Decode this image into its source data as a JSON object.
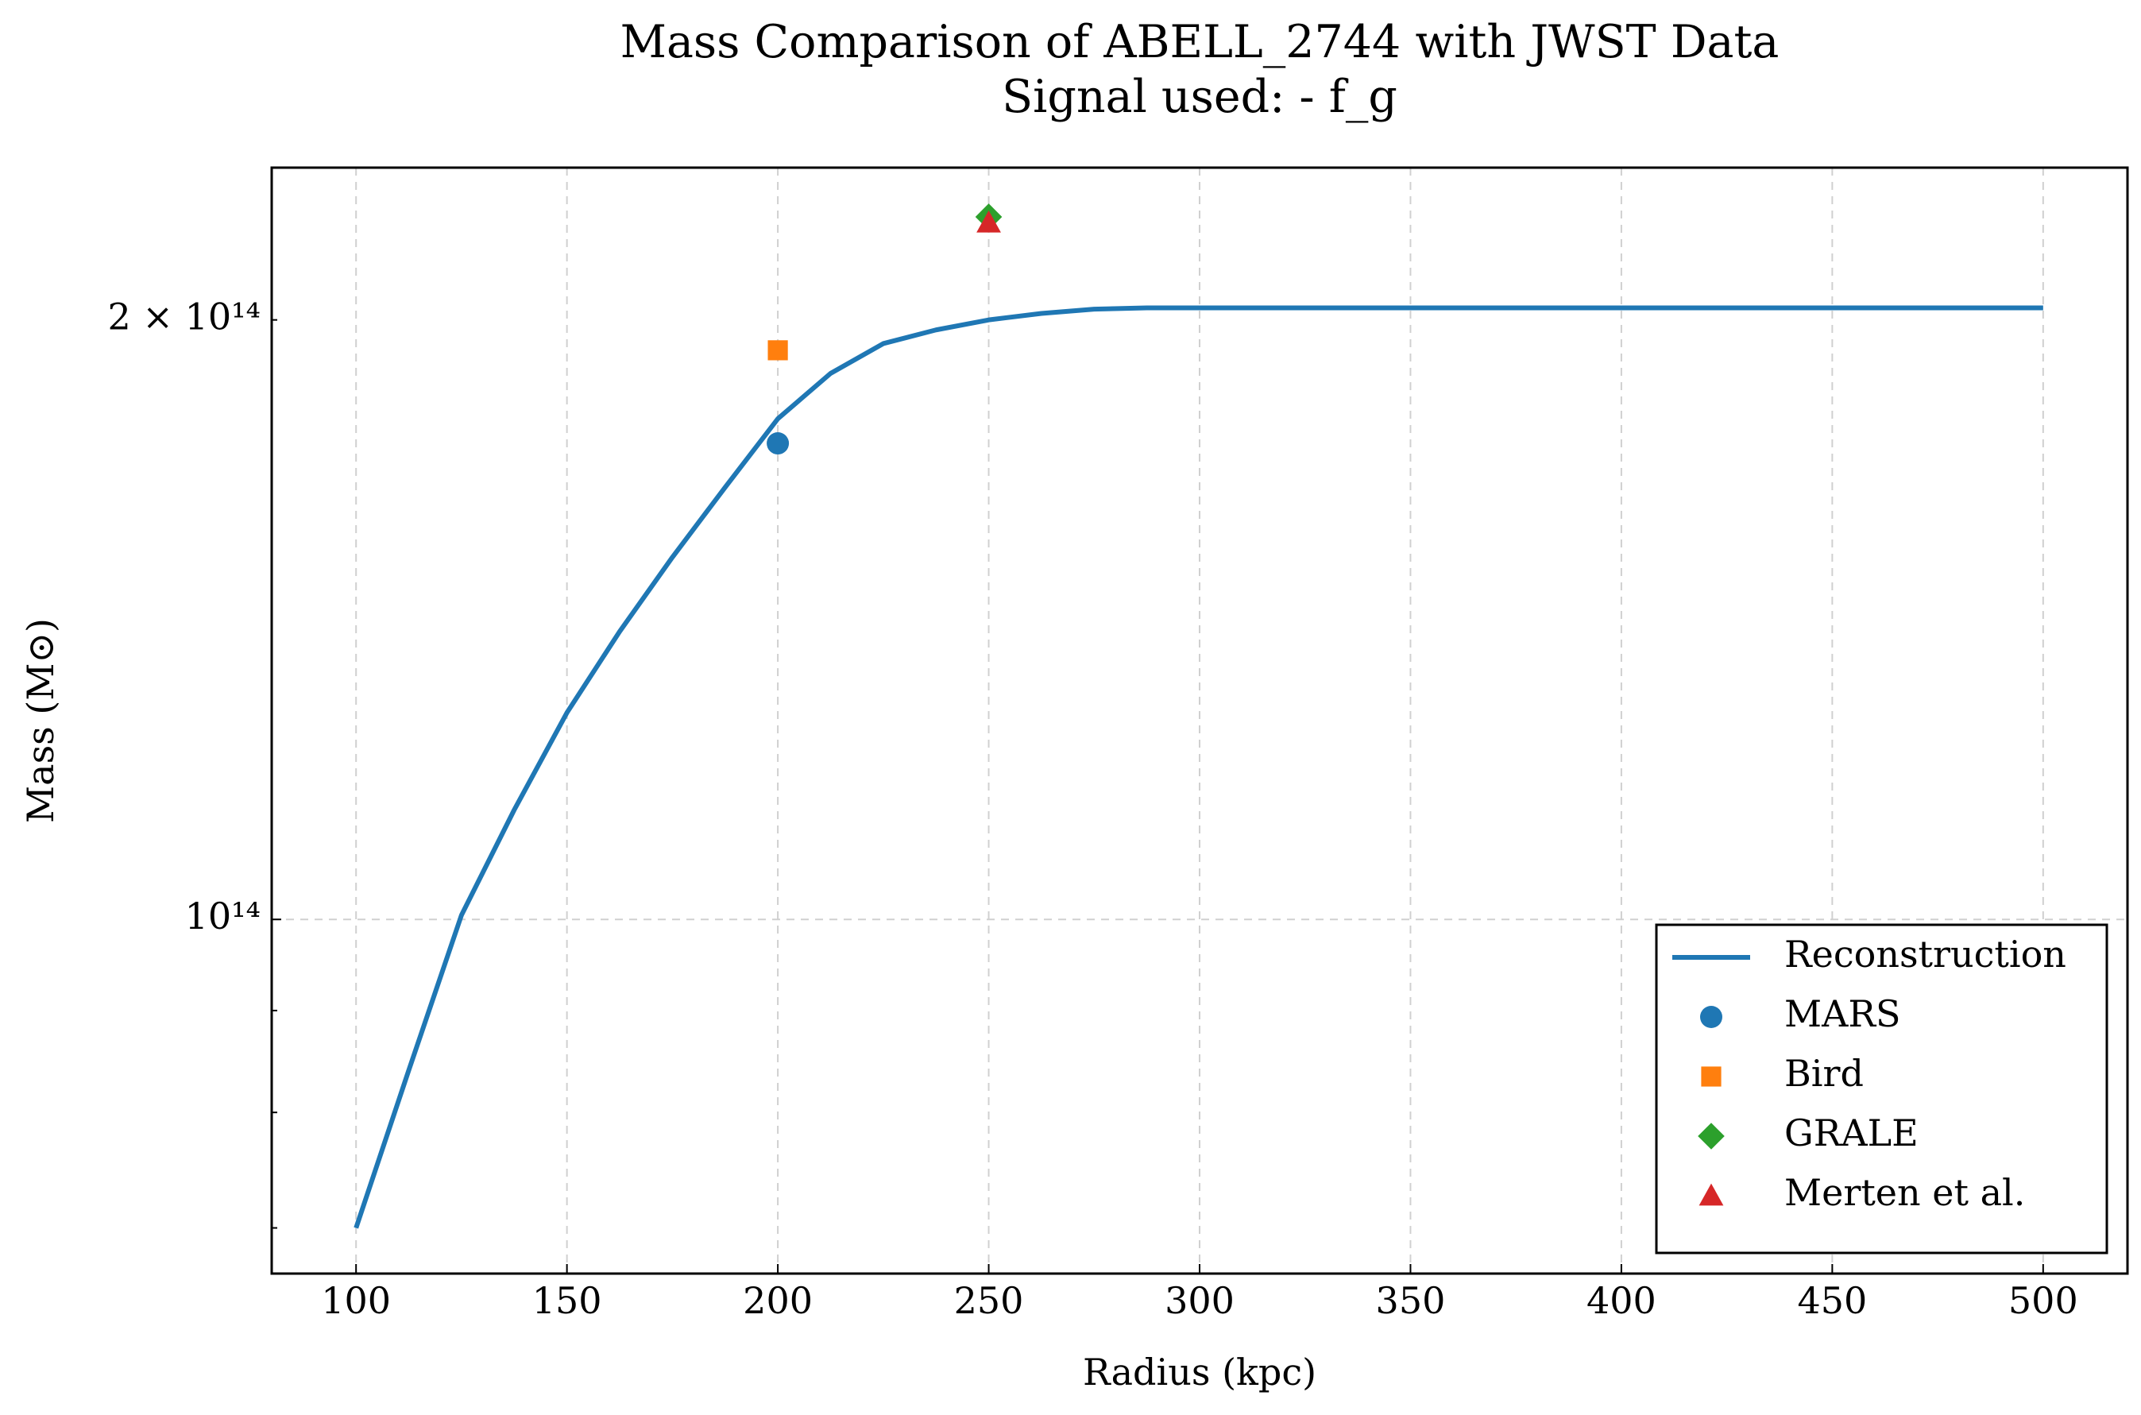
{
  "chart_data": {
    "type": "line",
    "title": "Mass Comparison of ABELL_2744 with JWST Data",
    "subtitle": "Signal used: - f_g",
    "x_label": "Radius (kpc)",
    "y_label": "Mass (M⊙)",
    "xlim": [
      80,
      520
    ],
    "xticks": [
      100,
      150,
      200,
      250,
      300,
      350,
      400,
      450,
      500
    ],
    "ylim": [
      66400000000000.0,
      238500000000000.0
    ],
    "log_y": true,
    "yticks": [
      {
        "value": 100000000000000.0,
        "label": "10¹⁴"
      }
    ],
    "yminorticks": [
      70000000000000.0,
      80000000000000.0,
      90000000000000.0,
      {
        "value": 200000000000000.0,
        "label": "2 × 10¹⁴"
      }
    ],
    "grid": true,
    "legend": "lower right",
    "series": [
      {
        "name": "Reconstruction",
        "type": "line",
        "color": "#1f77b4",
        "x": [
          100,
          112.5,
          125,
          137.5,
          150,
          162.5,
          175,
          187.5,
          200,
          212.5,
          225,
          237.5,
          250,
          262.5,
          275,
          287.5,
          300,
          350,
          400,
          450,
          500
        ],
        "values": [
          70000000000000.0,
          84000000000000.0,
          100500000000000.0,
          113500000000000.0,
          127000000000000.0,
          139500000000000.0,
          152000000000000.0,
          164800000000000.0,
          178400000000000.0,
          188000000000000.0,
          194600000000000.0,
          197700000000000.0,
          200000000000000.0,
          201500000000000.0,
          202500000000000.0,
          202800000000000.0,
          202800000000000.0,
          202800000000000.0,
          202800000000000.0,
          202800000000000.0,
          202800000000000.0
        ]
      },
      {
        "name": "MARS",
        "type": "scatter",
        "marker": "circle",
        "color": "#1f77b4",
        "x": [
          200
        ],
        "values": [
          173400000000000.0
        ]
      },
      {
        "name": "Bird",
        "type": "scatter",
        "marker": "square",
        "color": "#ff7f0e",
        "x": [
          200
        ],
        "values": [
          193100000000000.0
        ]
      },
      {
        "name": "GRALE",
        "type": "scatter",
        "marker": "diamond",
        "color": "#2ca02c",
        "x": [
          250
        ],
        "values": [
          225300000000000.0
        ]
      },
      {
        "name": "Merten et al.",
        "type": "scatter",
        "marker": "triangle",
        "color": "#d62728",
        "x": [
          250
        ],
        "values": [
          223800000000000.0
        ]
      }
    ]
  }
}
